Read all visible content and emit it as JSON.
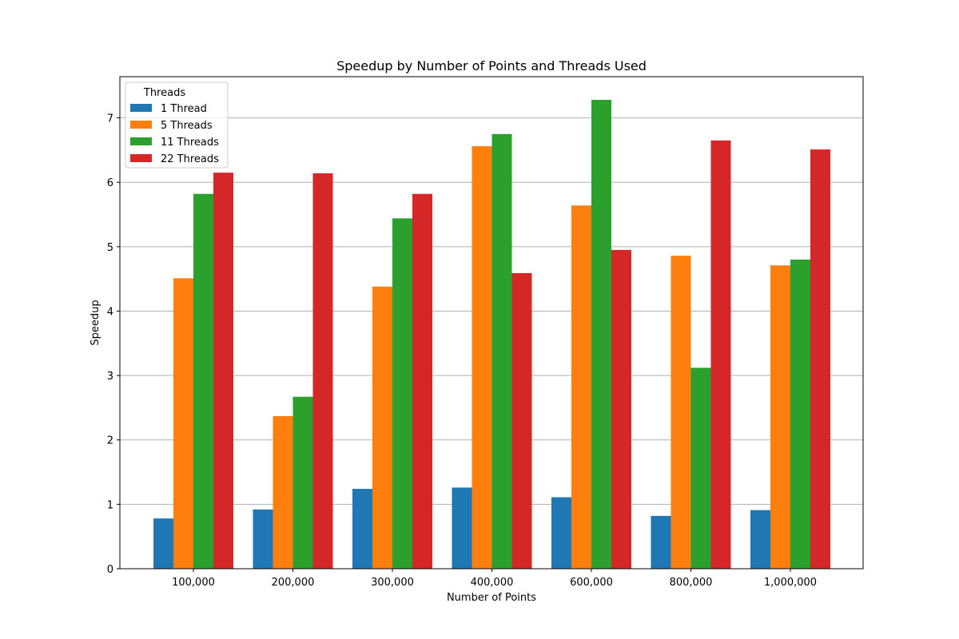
{
  "chart_data": {
    "type": "bar",
    "title": "Speedup by Number of Points and Threads Used",
    "xlabel": "Number of Points",
    "ylabel": "Speedup",
    "categories": [
      "100,000",
      "200,000",
      "300,000",
      "400,000",
      "600,000",
      "800,000",
      "1,000,000"
    ],
    "series": [
      {
        "name": "1 Thread",
        "color": "#1f77b4",
        "values": [
          0.78,
          0.92,
          1.24,
          1.26,
          1.11,
          0.82,
          0.91
        ]
      },
      {
        "name": "5 Threads",
        "color": "#ff7f0e",
        "values": [
          4.51,
          2.37,
          4.38,
          6.56,
          5.64,
          4.86,
          4.71
        ]
      },
      {
        "name": "11 Threads",
        "color": "#2ca02c",
        "values": [
          5.82,
          2.67,
          5.44,
          6.75,
          7.28,
          3.12,
          4.8
        ]
      },
      {
        "name": "22 Threads",
        "color": "#d62728",
        "values": [
          6.15,
          6.14,
          5.82,
          4.59,
          4.95,
          6.65,
          6.51
        ]
      }
    ],
    "yticks": [
      0,
      1,
      2,
      3,
      4,
      5,
      6,
      7
    ],
    "ylim": [
      0,
      7.64
    ],
    "grid": "y",
    "legend": {
      "title": "Threads",
      "placement": "top-left"
    }
  }
}
